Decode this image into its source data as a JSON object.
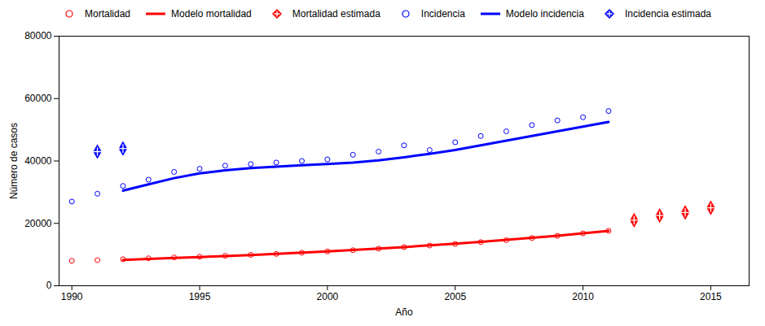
{
  "chart_data": {
    "type": "line",
    "xlabel": "Año",
    "ylabel": "Número de casos",
    "xlim": [
      1989.5,
      2016.5
    ],
    "ylim": [
      0,
      80000
    ],
    "xticks": [
      1990,
      1995,
      2000,
      2005,
      2010,
      2015
    ],
    "yticks": [
      0,
      20000,
      40000,
      60000,
      80000
    ],
    "legend": "upper left",
    "series": [
      {
        "name": "Mortalidad",
        "type": "scatter",
        "marker": "circle",
        "color": "#FF0000",
        "x": [
          1990,
          1991,
          1992,
          1993,
          1994,
          1995,
          1996,
          1997,
          1998,
          1999,
          2000,
          2001,
          2002,
          2003,
          2004,
          2005,
          2006,
          2007,
          2008,
          2009,
          2010,
          2011
        ],
        "values": [
          8000,
          8200,
          8500,
          8800,
          9100,
          9300,
          9600,
          9900,
          10200,
          10600,
          11000,
          11400,
          11900,
          12400,
          12900,
          13400,
          14000,
          14600,
          15300,
          16000,
          16800,
          17600
        ]
      },
      {
        "name": "Modelo mortalidad",
        "type": "line",
        "line_style": "solid",
        "color": "#FF0000",
        "x": [
          1992,
          1993,
          1994,
          1995,
          1996,
          1997,
          1998,
          1999,
          2000,
          2001,
          2002,
          2003,
          2004,
          2005,
          2006,
          2007,
          2008,
          2009,
          2010,
          2011
        ],
        "values": [
          8300,
          8600,
          8900,
          9200,
          9500,
          9850,
          10200,
          10600,
          11000,
          11450,
          11900,
          12400,
          12950,
          13500,
          14100,
          14700,
          15350,
          16050,
          16800,
          17600
        ]
      },
      {
        "name": "Mortalidad estimada",
        "type": "scatter",
        "marker": "diamond",
        "color": "#FF0000",
        "x": [
          2012,
          2013,
          2014,
          2015
        ],
        "values": [
          21000,
          22500,
          23500,
          25000
        ]
      },
      {
        "name": "Incidencia",
        "type": "scatter",
        "marker": "circle",
        "color": "#0000FF",
        "x": [
          1990,
          1991,
          1992,
          1993,
          1994,
          1995,
          1996,
          1997,
          1998,
          1999,
          2000,
          2001,
          2002,
          2003,
          2004,
          2005,
          2006,
          2007,
          2008,
          2009,
          2010,
          2011
        ],
        "values": [
          27000,
          29500,
          32000,
          34000,
          36500,
          37500,
          38500,
          39000,
          39500,
          40000,
          40500,
          42000,
          43000,
          45000,
          43500,
          46000,
          48000,
          49500,
          51500,
          53000,
          54000,
          56000
        ]
      },
      {
        "name": "Modelo incidencia",
        "type": "line",
        "line_style": "solid",
        "color": "#0000FF",
        "x": [
          1992,
          1993,
          1994,
          1995,
          1996,
          1997,
          1998,
          1999,
          2000,
          2001,
          2002,
          2003,
          2004,
          2005,
          2006,
          2007,
          2008,
          2009,
          2010,
          2011
        ],
        "values": [
          30500,
          32500,
          34500,
          36000,
          37000,
          37700,
          38200,
          38600,
          39000,
          39500,
          40200,
          41200,
          42300,
          43500,
          45000,
          46500,
          48000,
          49500,
          51000,
          52500
        ]
      },
      {
        "name": "Incidencia estimada",
        "type": "scatter",
        "marker": "diamond",
        "color": "#0000FF",
        "x": [
          1991,
          1992
        ],
        "values": [
          43000,
          44000
        ]
      }
    ]
  }
}
